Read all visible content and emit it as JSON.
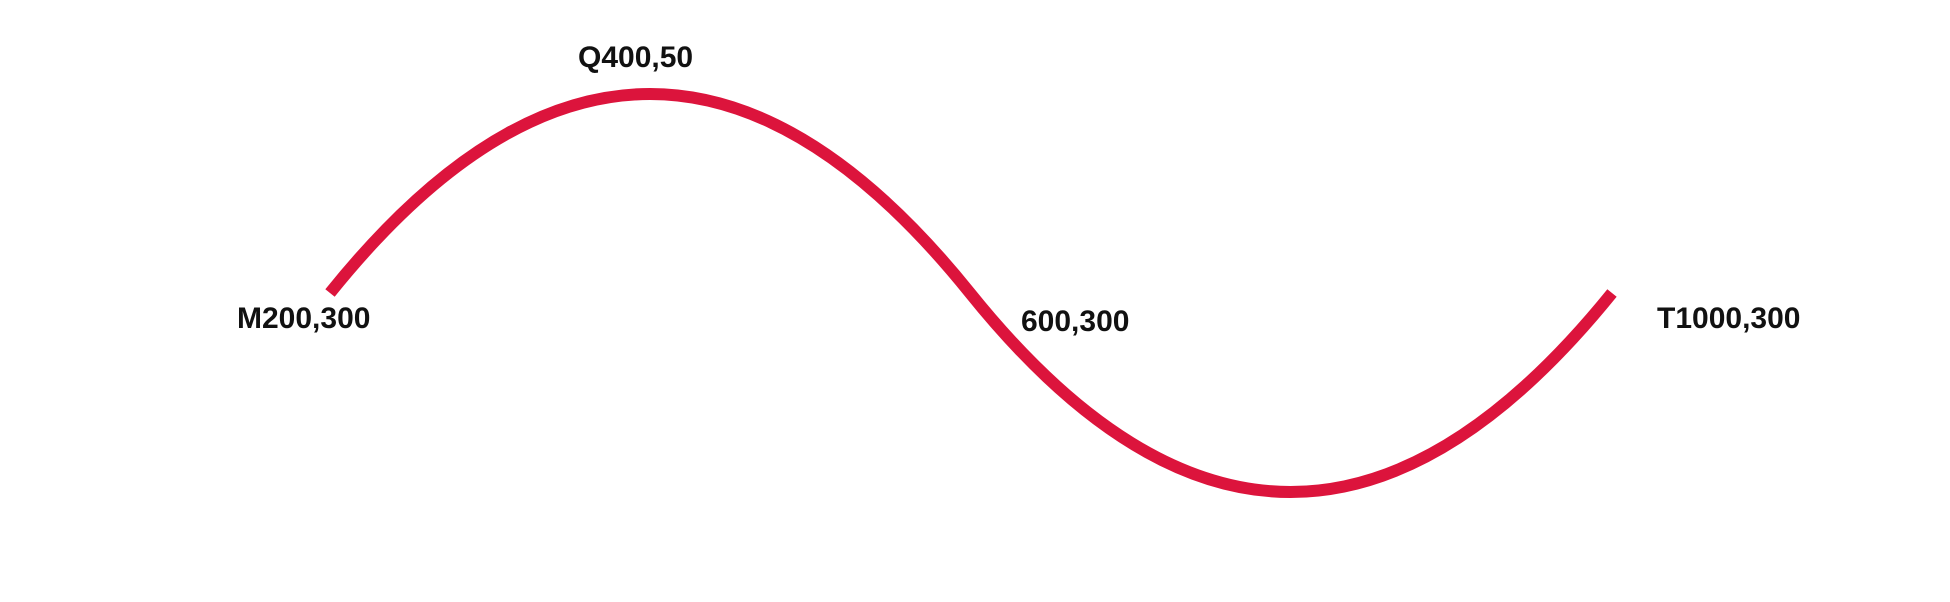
{
  "diagram": {
    "curve_color": "#dc143c",
    "text_color": "#111111",
    "labels": {
      "start": "M200,300",
      "control": "Q400,50",
      "end_of_quad": "600,300",
      "smooth_end": "T1000,300"
    }
  }
}
